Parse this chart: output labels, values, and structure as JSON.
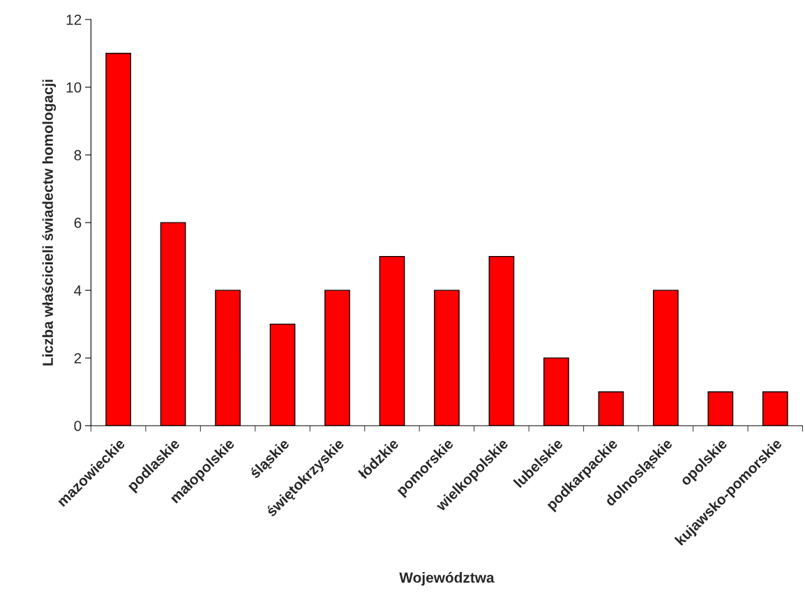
{
  "chart_data": {
    "type": "bar",
    "xlabel": "Województwa",
    "ylabel": "Liczba właścicieli świadectw homologacji",
    "categories": [
      "mazowieckie",
      "podlaskie",
      "małopolskie",
      "śląskie",
      "świętokrzyskie",
      "łódzkie",
      "pomorskie",
      "wielkopolskie",
      "lubelskie",
      "podkarpackie",
      "dolnosląskie",
      "opolskie",
      "kujawsko-pomorskie"
    ],
    "values": [
      11,
      6,
      4,
      3,
      4,
      5,
      4,
      5,
      2,
      1,
      4,
      1,
      1
    ],
    "color": "#ff0000",
    "ylim": [
      0,
      12
    ],
    "yticks": [
      0,
      2,
      4,
      6,
      8,
      10,
      12
    ],
    "grid": false
  }
}
